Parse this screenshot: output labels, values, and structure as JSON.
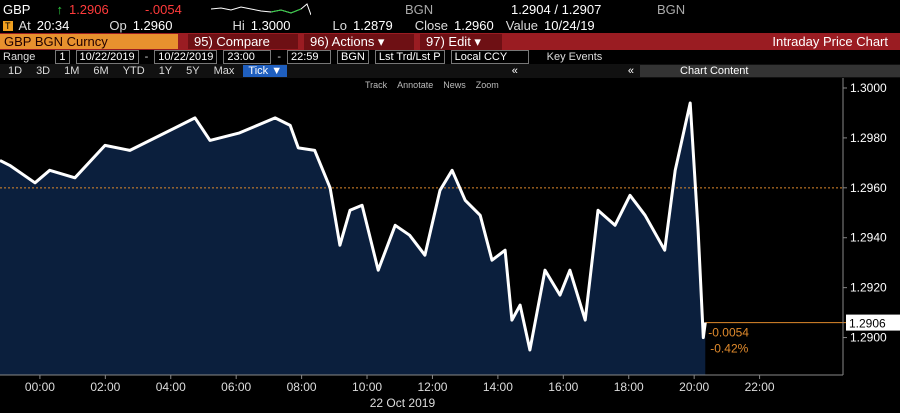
{
  "quote_bar": {
    "ticker": "GBP",
    "last": "1.2906",
    "change": "-.0054",
    "source": "BGN",
    "bid_ask": "1.2904 / 1.2907",
    "source2": "BGN"
  },
  "stats_bar": {
    "at_label": "At",
    "at": "20:34",
    "op_label": "Op",
    "op": "1.2960",
    "hi_label": "Hi",
    "hi": "1.3000",
    "lo_label": "Lo",
    "lo": "1.2879",
    "close_label": "Close",
    "close": "1.2960",
    "value_label": "Value",
    "value": "10/24/19"
  },
  "menu_bar": {
    "security": "GBP BGN Curncy",
    "buttons": [
      "95) Compare",
      "96) Actions ▾",
      "97) Edit ▾"
    ],
    "title": "Intraday Price Chart"
  },
  "range_bar": {
    "label": "Range",
    "period": "1",
    "start_date": "10/22/2019",
    "dash1": "-",
    "end_date": "10/22/2019",
    "start_time": "23:00",
    "dash2": "-",
    "end_time": "22:59",
    "source": "BGN",
    "field": "Lst Trd/Lst P",
    "currency": "Local CCY",
    "events": "Key Events"
  },
  "period_bar": {
    "periods": [
      "1D",
      "3D",
      "1M",
      "6M",
      "YTD",
      "1Y",
      "5Y",
      "Max",
      "Tick ▼"
    ],
    "collapse1": "«",
    "collapse2": "«",
    "content": "Chart Content"
  },
  "tools_bar": {
    "tools": [
      "Track",
      "Annotate",
      "News",
      "Zoom"
    ]
  },
  "chart_data": {
    "type": "area",
    "x_label": "22 Oct 2019",
    "x": [
      -1.22,
      -0.92,
      -0.15,
      0.3,
      1.07,
      1.99,
      2.75,
      3.67,
      4.74,
      5.2,
      6.1,
      7.19,
      7.65,
      7.9,
      8.4,
      8.87,
      9.17,
      9.48,
      9.85,
      10.34,
      10.86,
      11.3,
      11.77,
      12.23,
      12.6,
      13.0,
      13.46,
      13.82,
      14.22,
      14.43,
      14.68,
      14.98,
      15.44,
      15.9,
      16.2,
      16.67,
      17.06,
      17.58,
      18.04,
      18.5,
      19.1,
      19.42,
      19.88,
      20.12,
      20.28,
      20.34
    ],
    "series": [
      {
        "name": "GBP",
        "color": "#ffffff",
        "values": [
          1.2971,
          1.2969,
          1.2962,
          1.2967,
          1.2964,
          1.2977,
          1.2975,
          1.2981,
          1.2988,
          1.2979,
          1.2982,
          1.2988,
          1.2985,
          1.2976,
          1.2975,
          1.296,
          1.2937,
          1.2951,
          1.2953,
          1.2927,
          1.2945,
          1.2941,
          1.2933,
          1.2959,
          1.2967,
          1.2955,
          1.2949,
          1.2931,
          1.2935,
          1.2907,
          1.2913,
          1.2895,
          1.2927,
          1.2917,
          1.2927,
          1.2907,
          1.2951,
          1.2945,
          1.2957,
          1.2949,
          1.2935,
          1.2967,
          1.2994,
          1.2943,
          1.29,
          1.2906
        ]
      }
    ],
    "fill_color": "#0b1f3d",
    "xlim": [
      -1.22,
      24.55
    ],
    "xticks": [
      {
        "value": 0,
        "label": "00:00"
      },
      {
        "value": 2,
        "label": "02:00"
      },
      {
        "value": 4,
        "label": "04:00"
      },
      {
        "value": 6,
        "label": "06:00"
      },
      {
        "value": 8,
        "label": "08:00"
      },
      {
        "value": 10,
        "label": "10:00"
      },
      {
        "value": 12,
        "label": "12:00"
      },
      {
        "value": 14,
        "label": "14:00"
      },
      {
        "value": 16,
        "label": "16:00"
      },
      {
        "value": 18,
        "label": "18:00"
      },
      {
        "value": 20,
        "label": "20:00"
      },
      {
        "value": 22,
        "label": "22:00"
      }
    ],
    "ylim": [
      1.2885,
      1.3004
    ],
    "yticks": [
      {
        "value": 1.29,
        "label": "1.2900"
      },
      {
        "value": 1.292,
        "label": "1.2920"
      },
      {
        "value": 1.294,
        "label": "1.2940"
      },
      {
        "value": 1.296,
        "label": "1.2960"
      },
      {
        "value": 1.298,
        "label": "1.2980"
      },
      {
        "value": 1.3,
        "label": "1.3000"
      }
    ],
    "reference_line": 1.296,
    "last_value": 1.2906,
    "change": -0.0054,
    "change_pct_label": "-0.42%"
  }
}
